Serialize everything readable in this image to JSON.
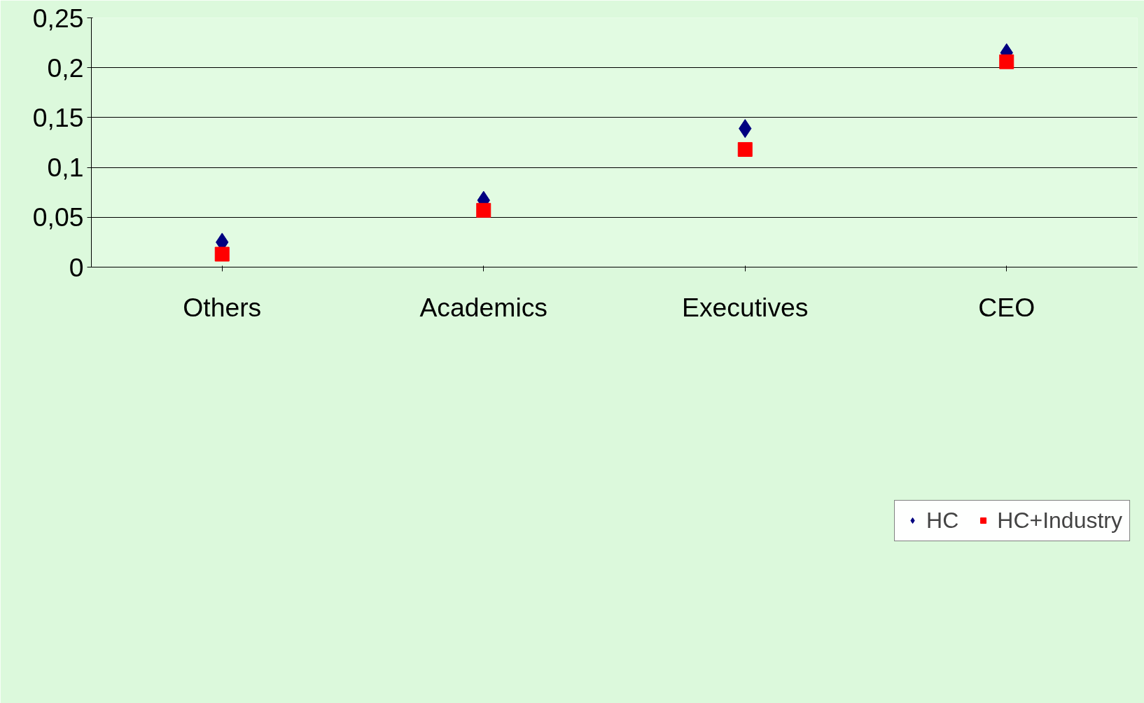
{
  "chart_data": {
    "type": "scatter",
    "categories": [
      "Others",
      "Academics",
      "Executives",
      "CEO"
    ],
    "series": [
      {
        "name": "HC",
        "color": "#000080",
        "marker": "diamond",
        "values": [
          0.025,
          0.067,
          0.139,
          0.215
        ]
      },
      {
        "name": "HC+Industry",
        "color": "#ff0000",
        "marker": "square",
        "values": [
          0.013,
          0.057,
          0.118,
          0.206
        ]
      }
    ],
    "ylim": [
      0,
      0.25
    ],
    "yticks": [
      {
        "value": 0,
        "label": "0"
      },
      {
        "value": 0.05,
        "label": "0,05"
      },
      {
        "value": 0.1,
        "label": "0,1"
      },
      {
        "value": 0.15,
        "label": "0,15"
      },
      {
        "value": 0.2,
        "label": "0,2"
      },
      {
        "value": 0.25,
        "label": "0,25"
      }
    ],
    "grid": "y",
    "legend": "bottom"
  }
}
